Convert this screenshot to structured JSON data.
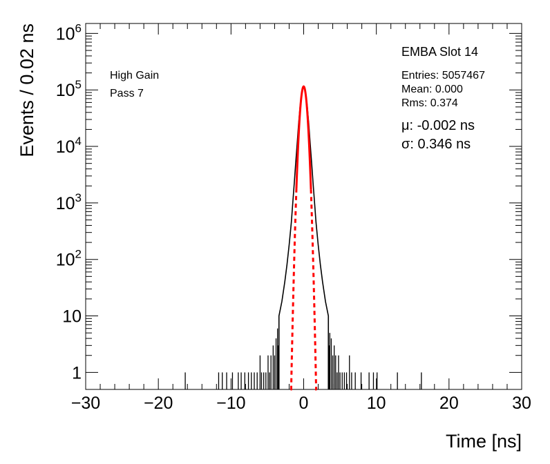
{
  "chart_data": {
    "type": "histogram",
    "xlabel": "Time [ns]",
    "ylabel": "Events / 0.02 ns",
    "xlim": [
      -30,
      30
    ],
    "ylim": [
      0.5,
      1500000
    ],
    "yscale": "log",
    "x_ticks": [
      "−30",
      "−20",
      "−10",
      "0",
      "10",
      "20",
      "30"
    ],
    "y_ticks": [
      {
        "base": "1",
        "exp": ""
      },
      {
        "base": "10",
        "exp": ""
      },
      {
        "base": "10",
        "exp": "2"
      },
      {
        "base": "10",
        "exp": "3"
      },
      {
        "base": "10",
        "exp": "4"
      },
      {
        "base": "10",
        "exp": "5"
      },
      {
        "base": "10",
        "exp": "6"
      }
    ],
    "title": "EMBA Slot 14",
    "annotations": {
      "gain": "High Gain",
      "pass": "Pass 7"
    },
    "stats": {
      "entries": "Entries: 5057467",
      "mean": "Mean: 0.000",
      "rms": "Rms: 0.374"
    },
    "fit_text": {
      "mu": "μ: -0.002 ns",
      "sigma": "σ: 0.346 ns"
    },
    "fit": {
      "type": "gaussian",
      "mu": -0.002,
      "sigma": 0.346,
      "peak": 115000,
      "color": "#ff0000",
      "solid_range": [
        -1.0,
        1.0
      ],
      "dashed_range": [
        -1.8,
        1.8
      ]
    },
    "histogram": {
      "color": "#000000",
      "core": [
        [
          -3.4,
          10
        ],
        [
          -3.0,
          18
        ],
        [
          -2.6,
          40
        ],
        [
          -2.3,
          80
        ],
        [
          -2.0,
          180
        ],
        [
          -1.7,
          450
        ],
        [
          -1.5,
          1000
        ],
        [
          -1.3,
          2200
        ],
        [
          -1.1,
          5000
        ],
        [
          -0.9,
          11000
        ],
        [
          -0.7,
          25000
        ],
        [
          -0.5,
          50000
        ],
        [
          -0.3,
          85000
        ],
        [
          -0.15,
          105000
        ],
        [
          0.0,
          115000
        ],
        [
          0.15,
          105000
        ],
        [
          0.3,
          85000
        ],
        [
          0.5,
          50000
        ],
        [
          0.7,
          25000
        ],
        [
          0.9,
          11000
        ],
        [
          1.1,
          5000
        ],
        [
          1.3,
          2200
        ],
        [
          1.5,
          1000
        ],
        [
          1.7,
          450
        ],
        [
          2.0,
          180
        ],
        [
          2.3,
          80
        ],
        [
          2.6,
          40
        ],
        [
          3.0,
          18
        ],
        [
          3.4,
          10
        ]
      ],
      "tail_spikes": [
        [
          -16.3,
          1
        ],
        [
          -11.7,
          1
        ],
        [
          -11.2,
          1
        ],
        [
          -10.6,
          1
        ],
        [
          -9.8,
          1
        ],
        [
          -9.0,
          1
        ],
        [
          -8.6,
          1
        ],
        [
          -8.1,
          1
        ],
        [
          -7.6,
          1
        ],
        [
          -7.2,
          1
        ],
        [
          -6.8,
          1
        ],
        [
          -6.4,
          1
        ],
        [
          -6.0,
          2
        ],
        [
          -5.8,
          1
        ],
        [
          -5.5,
          1
        ],
        [
          -5.2,
          1
        ],
        [
          -4.9,
          2
        ],
        [
          -4.7,
          1
        ],
        [
          -4.5,
          2
        ],
        [
          -4.2,
          3
        ],
        [
          -4.0,
          2
        ],
        [
          -3.8,
          4
        ],
        [
          -3.6,
          6
        ],
        [
          -3.5,
          3
        ],
        [
          3.5,
          3
        ],
        [
          3.6,
          5
        ],
        [
          3.8,
          4
        ],
        [
          4.0,
          2
        ],
        [
          4.2,
          3
        ],
        [
          4.4,
          2
        ],
        [
          4.6,
          1
        ],
        [
          4.8,
          2
        ],
        [
          5.0,
          1
        ],
        [
          5.3,
          1
        ],
        [
          5.6,
          1
        ],
        [
          5.9,
          1
        ],
        [
          6.3,
          2
        ],
        [
          6.6,
          1
        ],
        [
          7.1,
          1
        ],
        [
          7.9,
          1
        ],
        [
          9.0,
          1
        ],
        [
          9.6,
          1
        ],
        [
          10.1,
          1
        ],
        [
          12.9,
          1
        ],
        [
          16.2,
          1
        ]
      ]
    }
  }
}
